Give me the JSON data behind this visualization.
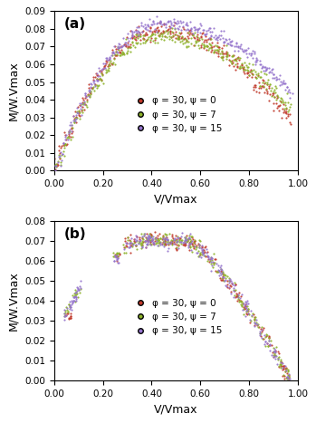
{
  "panel_a": {
    "label": "(a)",
    "ylim": [
      0.0,
      0.09
    ],
    "yticks": [
      0.0,
      0.01,
      0.02,
      0.03,
      0.04,
      0.05,
      0.06,
      0.07,
      0.08,
      0.09
    ],
    "xlim": [
      0.0,
      1.0
    ],
    "xticks": [
      0.0,
      0.2,
      0.4,
      0.6,
      0.8,
      1.0
    ],
    "xlabel": "V/Vmax",
    "ylabel": "M/W.Vmax"
  },
  "panel_b": {
    "label": "(b)",
    "ylim": [
      0.0,
      0.08
    ],
    "yticks": [
      0.0,
      0.01,
      0.02,
      0.03,
      0.04,
      0.05,
      0.06,
      0.07,
      0.08
    ],
    "xlim": [
      0.0,
      1.0
    ],
    "xticks": [
      0.0,
      0.2,
      0.4,
      0.6,
      0.8,
      1.0
    ],
    "xlabel": "V/Vmax",
    "ylabel": "M/W.Vmax"
  },
  "colors": [
    "#c0392b",
    "#8db32a",
    "#9575cd"
  ],
  "labels": [
    "φ = 30, ψ = 0",
    "φ = 30, ψ = 7",
    "φ = 30, ψ = 15"
  ],
  "marker_size": 2.5,
  "legend_fontsize": 7.5,
  "tick_fontsize": 7.5,
  "label_fontsize": 9
}
